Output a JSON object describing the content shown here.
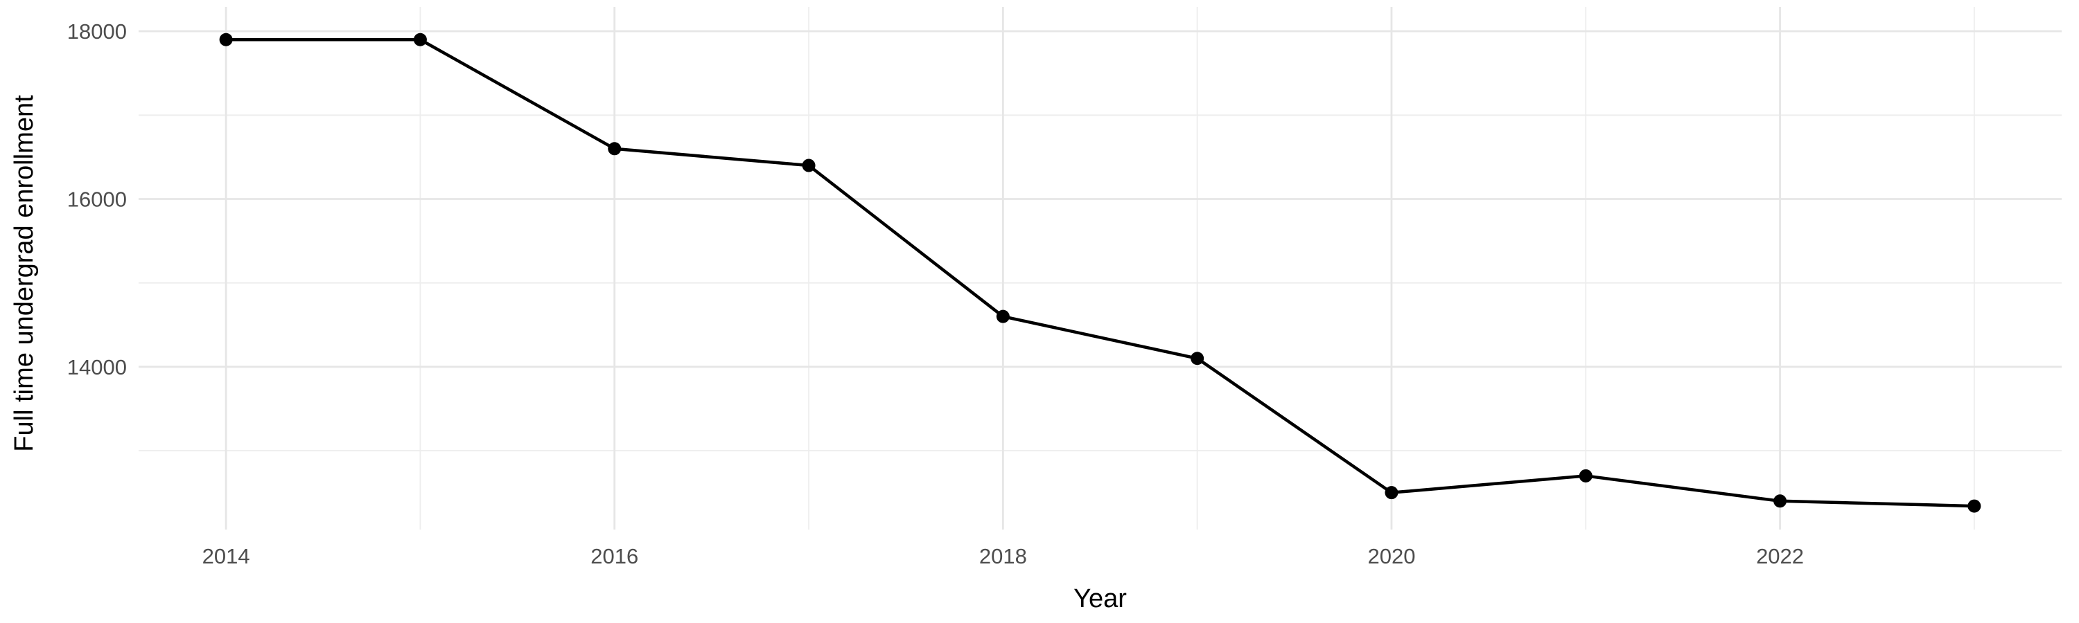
{
  "chart_data": {
    "type": "line",
    "title": "",
    "xlabel": "Year",
    "ylabel": "Full time undergrad enrollment",
    "series": [
      {
        "name": "Full time undergrad enrollment",
        "x": [
          2014,
          2015,
          2016,
          2017,
          2018,
          2019,
          2020,
          2021,
          2022,
          2023
        ],
        "values": [
          17900,
          17900,
          16600,
          16400,
          14600,
          14100,
          12500,
          12700,
          12400,
          12340
        ]
      }
    ],
    "x_ticks": [
      2014,
      2016,
      2018,
      2020,
      2022
    ],
    "y_ticks": [
      18000,
      16000,
      14000
    ],
    "x_minor_gridlines": [
      2015,
      2017,
      2019,
      2021,
      2023
    ],
    "y_minor_gridlines": [
      17000,
      15000,
      13000
    ],
    "xlim": [
      2013.55,
      2023.45
    ],
    "ylim": [
      12060,
      18290
    ],
    "grid": true,
    "legend": "none",
    "point_marker": "filled-circle",
    "colors": {
      "line": "#000000",
      "point": "#000000",
      "grid_major": "#e6e6e6",
      "grid_minor": "#ededed",
      "tick_label": "#4d4d4d",
      "axis_title": "#000000",
      "background": "#ffffff"
    }
  }
}
